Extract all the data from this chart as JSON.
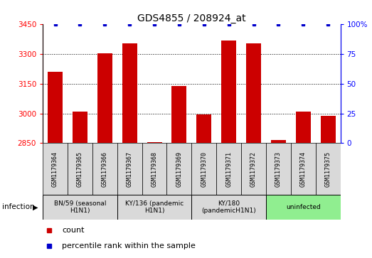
{
  "title": "GDS4855 / 208924_at",
  "samples": [
    "GSM1179364",
    "GSM1179365",
    "GSM1179366",
    "GSM1179367",
    "GSM1179368",
    "GSM1179369",
    "GSM1179370",
    "GSM1179371",
    "GSM1179372",
    "GSM1179373",
    "GSM1179374",
    "GSM1179375"
  ],
  "counts": [
    3210,
    3010,
    3305,
    3355,
    2855,
    3140,
    2995,
    3370,
    3355,
    2865,
    3010,
    2990
  ],
  "percentile_ranks": [
    100,
    100,
    100,
    100,
    100,
    100,
    100,
    100,
    100,
    100,
    100,
    100
  ],
  "bar_color": "#cc0000",
  "dot_color": "#0000cc",
  "ylim_left": [
    2850,
    3450
  ],
  "ylim_right": [
    0,
    100
  ],
  "yticks_left": [
    2850,
    3000,
    3150,
    3300,
    3450
  ],
  "yticks_right": [
    0,
    25,
    50,
    75,
    100
  ],
  "groups": [
    {
      "label": "BN/59 (seasonal\nH1N1)",
      "start": 0,
      "end": 3,
      "color": "#d9d9d9"
    },
    {
      "label": "KY/136 (pandemic\nH1N1)",
      "start": 3,
      "end": 6,
      "color": "#d9d9d9"
    },
    {
      "label": "KY/180\n(pandemicH1N1)",
      "start": 6,
      "end": 9,
      "color": "#d9d9d9"
    },
    {
      "label": "uninfected",
      "start": 9,
      "end": 12,
      "color": "#90ee90"
    }
  ],
  "infection_label": "infection",
  "legend_count_label": "count",
  "legend_percentile_label": "percentile rank within the sample",
  "background_color": "#ffffff",
  "title_fontsize": 10,
  "tick_fontsize": 7.5,
  "label_fontsize": 8
}
